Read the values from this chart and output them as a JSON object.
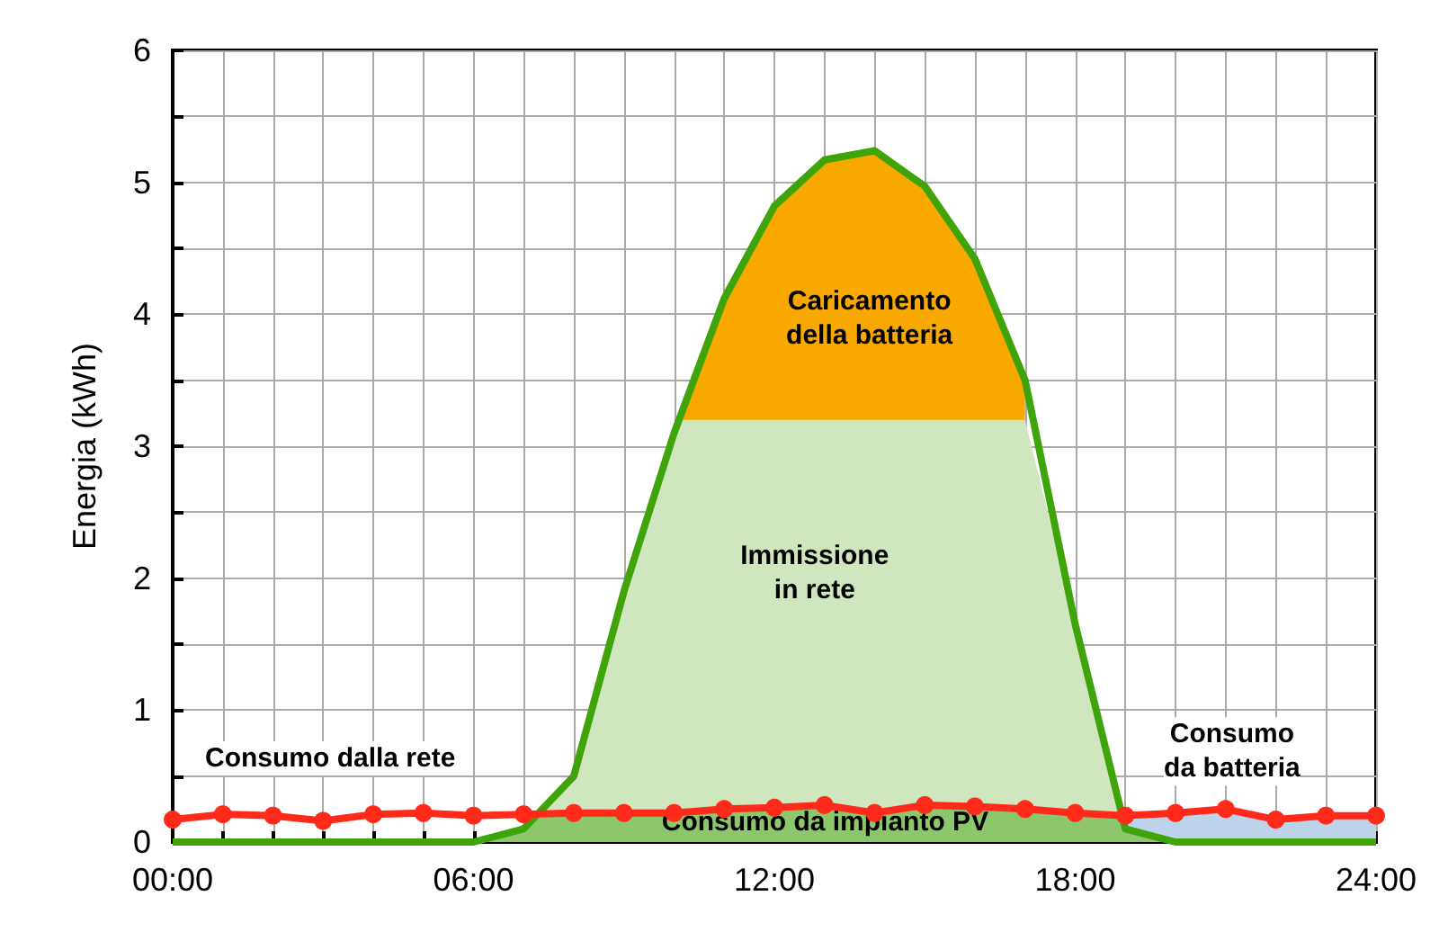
{
  "chart_data": {
    "type": "line",
    "ylabel": "Energia (kWh)",
    "x": [
      0,
      1,
      2,
      3,
      4,
      5,
      6,
      7,
      8,
      9,
      10,
      11,
      12,
      13,
      14,
      15,
      16,
      17,
      18,
      19,
      20,
      21,
      22,
      23,
      24
    ],
    "xlim": [
      0,
      24
    ],
    "xticks": [
      {
        "value": 0,
        "label": "00:00"
      },
      {
        "value": 1,
        "label": null
      },
      {
        "value": 2,
        "label": null
      },
      {
        "value": 3,
        "label": null
      },
      {
        "value": 4,
        "label": null
      },
      {
        "value": 5,
        "label": null
      },
      {
        "value": 6,
        "label": "06:00"
      },
      {
        "value": 7,
        "label": null
      },
      {
        "value": 8,
        "label": null
      },
      {
        "value": 9,
        "label": null
      },
      {
        "value": 10,
        "label": null
      },
      {
        "value": 11,
        "label": null
      },
      {
        "value": 12,
        "label": "12:00"
      },
      {
        "value": 13,
        "label": null
      },
      {
        "value": 14,
        "label": null
      },
      {
        "value": 15,
        "label": null
      },
      {
        "value": 16,
        "label": null
      },
      {
        "value": 17,
        "label": null
      },
      {
        "value": 18,
        "label": "18:00"
      },
      {
        "value": 19,
        "label": null
      },
      {
        "value": 20,
        "label": null
      },
      {
        "value": 21,
        "label": null
      },
      {
        "value": 22,
        "label": null
      },
      {
        "value": 23,
        "label": null
      },
      {
        "value": 24,
        "label": "24:00"
      }
    ],
    "ylim": [
      0,
      6
    ],
    "yticks": [
      0,
      {
        "value": 0.5,
        "label": null
      },
      1,
      {
        "value": 1.5,
        "label": null
      },
      2,
      {
        "value": 2.5,
        "label": null
      },
      3,
      {
        "value": 3.5,
        "label": null
      },
      4,
      {
        "value": 4.5,
        "label": null
      },
      5,
      {
        "value": 5.5,
        "label": null
      },
      6
    ],
    "grid": true,
    "legend": false,
    "series": [
      {
        "type": "area",
        "name": "Caricamento\ndella batteria",
        "color": "#f9a800",
        "x": [
          10.05,
          11,
          12,
          13,
          14,
          15,
          16,
          17,
          17
        ],
        "values": [
          3.2,
          4.12,
          4.82,
          5.17,
          5.24,
          4.97,
          4.42,
          3.5,
          3.2
        ]
      },
      {
        "type": "area",
        "name": "Immissione\nin rete",
        "color": "#cfe6be",
        "x": [
          7.3,
          8,
          9,
          10,
          10.05,
          11,
          12,
          13,
          14,
          15,
          16,
          17,
          18,
          18.9
        ],
        "values": [
          0.21,
          0.5,
          1.9,
          3.1,
          3.2,
          3.2,
          3.2,
          3.2,
          3.2,
          3.2,
          3.2,
          3.2,
          1.65,
          0.21
        ]
      },
      {
        "type": "area",
        "name": "Consumo\nda batteria",
        "color": "#bcd3ea",
        "x": [
          18.9,
          19,
          20,
          21,
          22,
          23,
          24
        ],
        "values": [
          0.21,
          0.2,
          0.22,
          0.25,
          0.17,
          0.2,
          0.2
        ]
      },
      {
        "type": "area",
        "name": "Consumo da impianto PV",
        "color": "#8cc86b",
        "x": [
          6,
          7,
          7.3,
          8,
          9,
          10,
          11,
          12,
          13,
          14,
          15,
          16,
          17,
          18,
          18.9,
          19,
          20
        ],
        "values": [
          0,
          0.1,
          0.21,
          0.22,
          0.22,
          0.22,
          0.25,
          0.26,
          0.28,
          0.22,
          0.28,
          0.27,
          0.25,
          0.22,
          0.21,
          0.1,
          0
        ]
      },
      {
        "color": "#3fa40a",
        "marker": "none",
        "values": [
          0,
          0,
          0,
          0,
          0,
          0,
          0,
          0.1,
          0.5,
          1.9,
          3.1,
          4.12,
          4.82,
          5.17,
          5.24,
          4.97,
          4.42,
          3.5,
          1.65,
          0.1,
          0,
          0,
          0,
          0,
          0
        ]
      },
      {
        "name": "Consumo dalla rete",
        "color": "#ff2a1a",
        "marker": "circle",
        "values": [
          0.17,
          0.21,
          0.2,
          0.16,
          0.21,
          0.22,
          0.2,
          0.21,
          0.22,
          0.22,
          0.22,
          0.25,
          0.26,
          0.28,
          0.22,
          0.28,
          0.27,
          0.25,
          0.22,
          0.2,
          0.22,
          0.25,
          0.17,
          0.2,
          0.2
        ]
      }
    ]
  }
}
